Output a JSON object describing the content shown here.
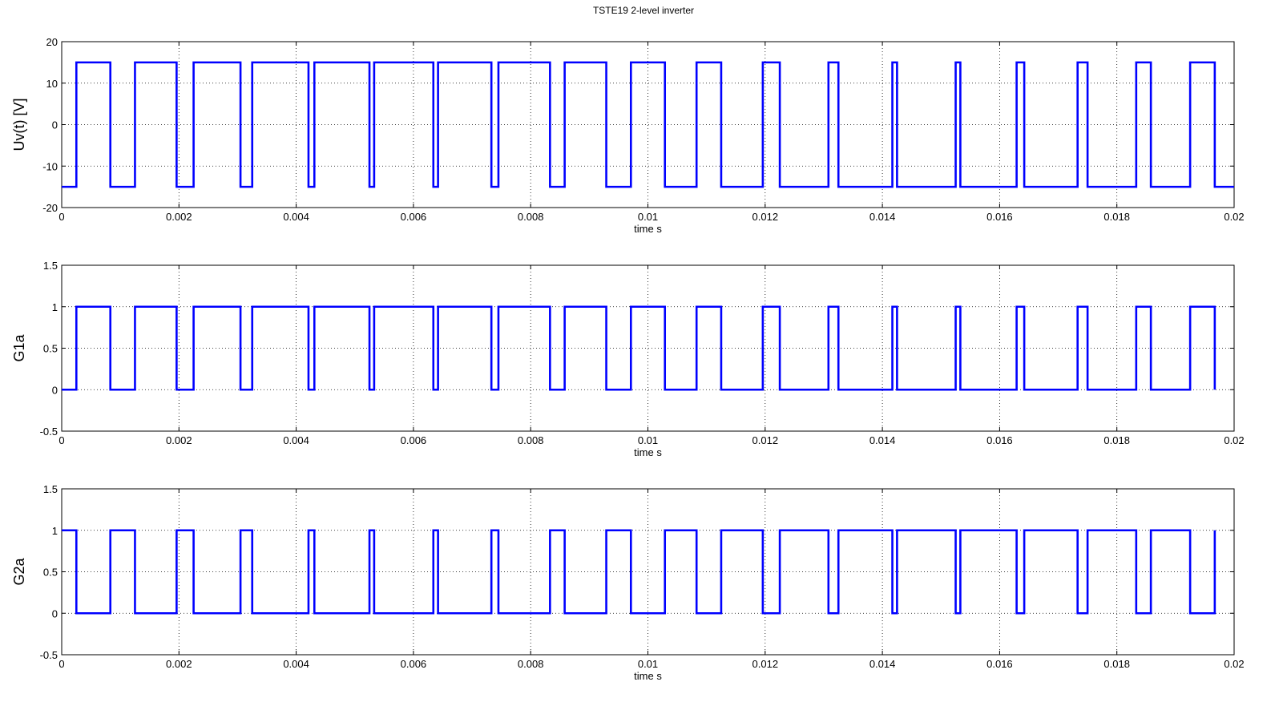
{
  "figure": {
    "title": "TSTE19 2-level inverter"
  },
  "chart_data": [
    {
      "type": "line",
      "ylabel": "Uv(t) [V]",
      "xlabel": "time s",
      "xlim": [
        0,
        0.02
      ],
      "ylim": [
        -20,
        20
      ],
      "xticks": [
        "0",
        "0.002",
        "0.004",
        "0.006",
        "0.008",
        "0.01",
        "0.012",
        "0.014",
        "0.016",
        "0.018",
        "0.02"
      ],
      "yticks": [
        "-20",
        "-10",
        "0",
        "10",
        "20"
      ],
      "ytick_values": [
        -20,
        -10,
        0,
        10,
        20
      ],
      "grid": true,
      "line_color": "#0000ff",
      "high_value": 15,
      "low_value": -15,
      "series": [
        {
          "x": [
            0,
            0.00025,
            0.00025,
            0.00083,
            0.00083,
            0.00125,
            0.00125,
            0.00196,
            0.00196,
            0.00225,
            0.00225,
            0.00305,
            0.00305,
            0.00325,
            0.00325,
            0.00421,
            0.00421,
            0.00431,
            0.00431,
            0.00525,
            0.00525,
            0.00533,
            0.00533,
            0.00634,
            0.00634,
            0.00642,
            0.00642,
            0.00733,
            0.00733,
            0.00745,
            0.00745,
            0.00833,
            0.00833,
            0.00858,
            0.00858,
            0.00929,
            0.00929,
            0.00971,
            0.00971,
            0.01029,
            0.01029,
            0.01083,
            0.01083,
            0.01125,
            0.01125,
            0.01196,
            0.01196,
            0.01225,
            0.01225,
            0.01308,
            0.01308,
            0.01325,
            0.01325,
            0.01417,
            0.01417,
            0.01425,
            0.01425,
            0.01525,
            0.01525,
            0.01533,
            0.01533,
            0.01629,
            0.01629,
            0.01642,
            0.01642,
            0.01733,
            0.01733,
            0.0175,
            0.0175,
            0.01833,
            0.01833,
            0.01858,
            0.01858,
            0.01925,
            0.01925,
            0.01967,
            0.01967,
            0.02
          ],
          "y": [
            -15,
            -15,
            15,
            15,
            -15,
            -15,
            15,
            15,
            -15,
            -15,
            15,
            15,
            -15,
            -15,
            15,
            15,
            -15,
            -15,
            15,
            15,
            -15,
            -15,
            15,
            15,
            -15,
            -15,
            15,
            15,
            -15,
            -15,
            15,
            15,
            -15,
            -15,
            15,
            15,
            -15,
            -15,
            15,
            15,
            -15,
            -15,
            15,
            15,
            -15,
            -15,
            15,
            15,
            -15,
            -15,
            15,
            15,
            -15,
            -15,
            15,
            15,
            -15,
            -15,
            15,
            15,
            -15,
            -15,
            15,
            15,
            -15,
            -15,
            15,
            15,
            -15,
            -15,
            15,
            15,
            -15,
            -15,
            15,
            15,
            -15,
            -15
          ]
        }
      ]
    },
    {
      "type": "line",
      "ylabel": "G1a",
      "xlabel": "time s",
      "xlim": [
        0,
        0.02
      ],
      "ylim": [
        -0.5,
        1.5
      ],
      "xticks": [
        "0",
        "0.002",
        "0.004",
        "0.006",
        "0.008",
        "0.01",
        "0.012",
        "0.014",
        "0.016",
        "0.018",
        "0.02"
      ],
      "yticks": [
        "-0.5",
        "0",
        "0.5",
        "1",
        "1.5"
      ],
      "ytick_values": [
        -0.5,
        0,
        0.5,
        1,
        1.5
      ],
      "grid": true,
      "line_color": "#0000ff",
      "high_value": 1,
      "low_value": 0,
      "series": [
        {
          "x": [
            0,
            0.00025,
            0.00025,
            0.00083,
            0.00083,
            0.00125,
            0.00125,
            0.00196,
            0.00196,
            0.00225,
            0.00225,
            0.00305,
            0.00305,
            0.00325,
            0.00325,
            0.00421,
            0.00421,
            0.00431,
            0.00431,
            0.00525,
            0.00525,
            0.00533,
            0.00533,
            0.00634,
            0.00634,
            0.00642,
            0.00642,
            0.00733,
            0.00733,
            0.00745,
            0.00745,
            0.00833,
            0.00833,
            0.00858,
            0.00858,
            0.00929,
            0.00929,
            0.00971,
            0.00971,
            0.01029,
            0.01029,
            0.01083,
            0.01083,
            0.01125,
            0.01125,
            0.01196,
            0.01196,
            0.01225,
            0.01225,
            0.01308,
            0.01308,
            0.01325,
            0.01325,
            0.01417,
            0.01417,
            0.01425,
            0.01425,
            0.01525,
            0.01525,
            0.01533,
            0.01533,
            0.01629,
            0.01629,
            0.01642,
            0.01642,
            0.01733,
            0.01733,
            0.0175,
            0.0175,
            0.01833,
            0.01833,
            0.01858,
            0.01858,
            0.01925,
            0.01925,
            0.01967,
            0.01967
          ],
          "y": [
            0,
            0,
            1,
            1,
            0,
            0,
            1,
            1,
            0,
            0,
            1,
            1,
            0,
            0,
            1,
            1,
            0,
            0,
            1,
            1,
            0,
            0,
            1,
            1,
            0,
            0,
            1,
            1,
            0,
            0,
            1,
            1,
            0,
            0,
            1,
            1,
            0,
            0,
            1,
            1,
            0,
            0,
            1,
            1,
            0,
            0,
            1,
            1,
            0,
            0,
            1,
            1,
            0,
            0,
            1,
            1,
            0,
            0,
            1,
            1,
            0,
            0,
            1,
            1,
            0,
            0,
            1,
            1,
            0,
            0,
            1,
            1,
            0,
            0,
            1,
            1,
            0
          ]
        }
      ]
    },
    {
      "type": "line",
      "ylabel": "G2a",
      "xlabel": "time s",
      "xlim": [
        0,
        0.02
      ],
      "ylim": [
        -0.5,
        1.5
      ],
      "xticks": [
        "0",
        "0.002",
        "0.004",
        "0.006",
        "0.008",
        "0.01",
        "0.012",
        "0.014",
        "0.016",
        "0.018",
        "0.02"
      ],
      "yticks": [
        "-0.5",
        "0",
        "0.5",
        "1",
        "1.5"
      ],
      "ytick_values": [
        -0.5,
        0,
        0.5,
        1,
        1.5
      ],
      "grid": true,
      "line_color": "#0000ff",
      "high_value": 1,
      "low_value": 0,
      "series": [
        {
          "x": [
            0,
            0.00025,
            0.00025,
            0.00083,
            0.00083,
            0.00125,
            0.00125,
            0.00196,
            0.00196,
            0.00225,
            0.00225,
            0.00305,
            0.00305,
            0.00325,
            0.00325,
            0.00421,
            0.00421,
            0.00431,
            0.00431,
            0.00525,
            0.00525,
            0.00533,
            0.00533,
            0.00634,
            0.00634,
            0.00642,
            0.00642,
            0.00733,
            0.00733,
            0.00745,
            0.00745,
            0.00833,
            0.00833,
            0.00858,
            0.00858,
            0.00929,
            0.00929,
            0.00971,
            0.00971,
            0.01029,
            0.01029,
            0.01083,
            0.01083,
            0.01125,
            0.01125,
            0.01196,
            0.01196,
            0.01225,
            0.01225,
            0.01308,
            0.01308,
            0.01325,
            0.01325,
            0.01417,
            0.01417,
            0.01425,
            0.01425,
            0.01525,
            0.01525,
            0.01533,
            0.01533,
            0.01629,
            0.01629,
            0.01642,
            0.01642,
            0.01733,
            0.01733,
            0.0175,
            0.0175,
            0.01833,
            0.01833,
            0.01858,
            0.01858,
            0.01925,
            0.01925,
            0.01967,
            0.01967
          ],
          "y": [
            1,
            1,
            0,
            0,
            1,
            1,
            0,
            0,
            1,
            1,
            0,
            0,
            1,
            1,
            0,
            0,
            1,
            1,
            0,
            0,
            1,
            1,
            0,
            0,
            1,
            1,
            0,
            0,
            1,
            1,
            0,
            0,
            1,
            1,
            0,
            0,
            1,
            1,
            0,
            0,
            1,
            1,
            0,
            0,
            1,
            1,
            0,
            0,
            1,
            1,
            0,
            0,
            1,
            1,
            0,
            0,
            1,
            1,
            0,
            0,
            1,
            1,
            0,
            0,
            1,
            1,
            0,
            0,
            1,
            1,
            0,
            0,
            1,
            1,
            0,
            0,
            1
          ]
        }
      ]
    }
  ]
}
